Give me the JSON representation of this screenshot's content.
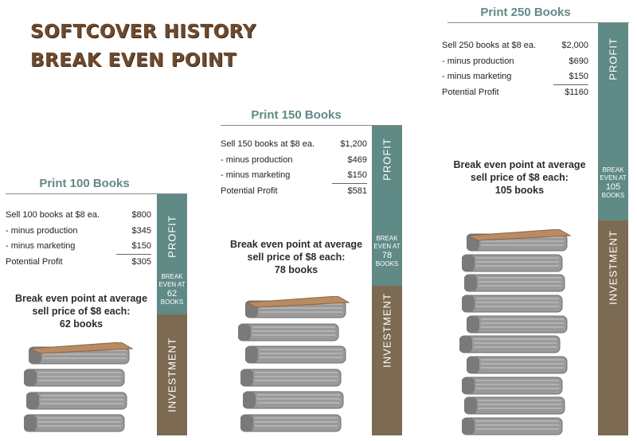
{
  "title": {
    "line1": "SOFTCOVER HISTORY",
    "line2": "BREAK EVEN POINT"
  },
  "colors": {
    "profit": "#5f8a86",
    "investment": "#7d6a52",
    "title": "#6e4a2e",
    "book_cover": "#b98b63",
    "book_pages": "#9a9a9a"
  },
  "scenarios": [
    {
      "heading": "Print 100 Books",
      "lines": [
        {
          "label": "Sell 100 books at $8 ea.",
          "amount": "$800"
        },
        {
          "label": "- minus production",
          "amount": "$345"
        },
        {
          "label": "- minus marketing",
          "amount": "$150"
        },
        {
          "label": "Potential Profit",
          "amount": "$305"
        }
      ],
      "note": [
        "Break even point at average",
        "sell price of $8 each:",
        "62 books"
      ],
      "badge": {
        "line1": "BREAK",
        "line2": "EVEN AT",
        "num": "62",
        "unit": "BOOKS"
      },
      "profit_label": "PROFIT",
      "investment_label": "INVESTMENT",
      "book_count": 4
    },
    {
      "heading": "Print 150 Books",
      "lines": [
        {
          "label": "Sell 150 books at $8 ea.",
          "amount": "$1,200"
        },
        {
          "label": "- minus production",
          "amount": "$469"
        },
        {
          "label": "- minus marketing",
          "amount": "$150"
        },
        {
          "label": "Potential Profit",
          "amount": "$581"
        }
      ],
      "note": [
        "Break even point at average",
        "sell price of $8 each:",
        "78 books"
      ],
      "badge": {
        "line1": "BREAK",
        "line2": "EVEN AT",
        "num": "78",
        "unit": "BOOKS"
      },
      "profit_label": "PROFIT",
      "investment_label": "INVESTMENT",
      "book_count": 6
    },
    {
      "heading": "Print 250 Books",
      "lines": [
        {
          "label": "Sell 250 books at $8 ea.",
          "amount": "$2,000"
        },
        {
          "label": "- minus production",
          "amount": "$690"
        },
        {
          "label": "- minus marketing",
          "amount": "$150"
        },
        {
          "label": "Potential Profit",
          "amount": "$1160"
        }
      ],
      "note": [
        "Break even point at average",
        "sell price of $8 each:",
        "105 books"
      ],
      "badge": {
        "line1": "BREAK",
        "line2": "EVEN AT",
        "num": "105",
        "unit": "BOOKS"
      },
      "profit_label": "PROFIT",
      "investment_label": "INVESTMENT",
      "book_count": 10
    }
  ]
}
